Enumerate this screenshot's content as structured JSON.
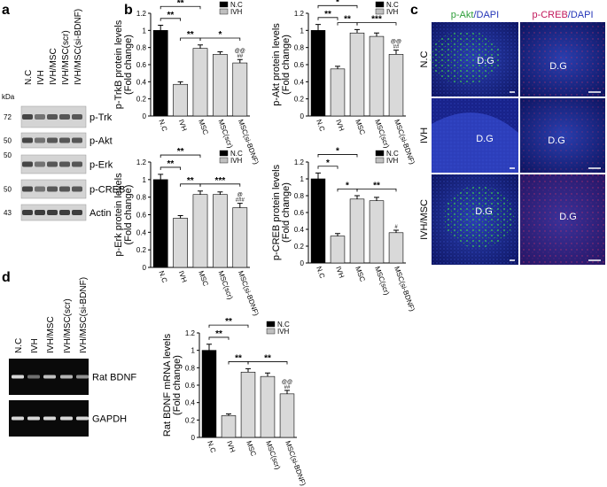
{
  "panels": [
    "a",
    "b",
    "c",
    "d"
  ],
  "blot": {
    "kda_label": "kDa",
    "lanes": [
      "N.C",
      "IVH",
      "IVH/MSC",
      "IVH/MSC(scr)",
      "IVH/MSC(si-BDNF)"
    ],
    "rows": [
      {
        "label": "p-Trk",
        "kda": "72"
      },
      {
        "label": "p-Akt",
        "kda": "50"
      },
      {
        "label": "p-Erk",
        "kda": "50"
      },
      {
        "label": "p-CREB",
        "kda": "50"
      },
      {
        "label": "Actin",
        "kda": "43"
      }
    ]
  },
  "images": {
    "columns": [
      {
        "marker": "p-Akt",
        "stain": "/DAPI"
      },
      {
        "marker": "p-CREB",
        "stain": "/DAPI"
      }
    ],
    "rows": [
      "N.C",
      "IVH",
      "IVH/MSC"
    ],
    "region": "D.G"
  },
  "gel": {
    "lanes": [
      "N.C",
      "IVH",
      "IVH/MSC",
      "IVH/MSC(scr)",
      "IVH/MSC(si-BDNF)"
    ],
    "rows": [
      "Rat BDNF",
      "GAPDH"
    ]
  },
  "chart_data": [
    {
      "type": "bar",
      "ylabel": [
        "p-TrkB protein levels",
        "(Fold change)"
      ],
      "categories": [
        "N.C",
        "IVH",
        "MSC",
        "MSC(scr)",
        "MSC(si-BDNF)"
      ],
      "values": [
        1.0,
        0.37,
        0.79,
        0.72,
        0.62
      ],
      "errors": [
        0.06,
        0.03,
        0.04,
        0.03,
        0.04
      ],
      "colors": [
        "#000000",
        "#d9d9d9",
        "#d9d9d9",
        "#d9d9d9",
        "#d9d9d9"
      ],
      "legend": [
        {
          "name": "N.C",
          "color": "#000000"
        },
        {
          "name": "IVH",
          "color": "#bfbfbf"
        }
      ],
      "ylim": [
        0,
        1.2
      ],
      "yticks": [
        0,
        0.2,
        0.4,
        0.6,
        0.8,
        1,
        1.2
      ],
      "brackets": [
        "**",
        "**",
        "**",
        "*"
      ],
      "marks": [
        "##",
        "@@"
      ]
    },
    {
      "type": "bar",
      "ylabel": [
        "p-Akt protein levels",
        "(Fold change)"
      ],
      "categories": [
        "N.C",
        "IVH",
        "MSC",
        "MSC(scr)",
        "MSC(si-BDNF)"
      ],
      "values": [
        1.0,
        0.55,
        0.97,
        0.93,
        0.72
      ],
      "errors": [
        0.07,
        0.03,
        0.04,
        0.04,
        0.05
      ],
      "colors": [
        "#000000",
        "#d9d9d9",
        "#d9d9d9",
        "#d9d9d9",
        "#d9d9d9"
      ],
      "legend": [
        {
          "name": "N.C",
          "color": "#000000"
        },
        {
          "name": "IVH",
          "color": "#bfbfbf"
        }
      ],
      "ylim": [
        0,
        1.2
      ],
      "yticks": [
        0,
        0.2,
        0.4,
        0.6,
        0.8,
        1,
        1.2
      ],
      "brackets": [
        "*",
        "**",
        "**",
        "***"
      ],
      "marks": [
        "##",
        "@@"
      ]
    },
    {
      "type": "bar",
      "ylabel": [
        "p-Erk protein levels",
        "(Fold change)"
      ],
      "categories": [
        "N.C",
        "IVH",
        "MSC",
        "MSC(scr)",
        "MSC(si-BDNF)"
      ],
      "values": [
        1.0,
        0.56,
        0.83,
        0.83,
        0.68
      ],
      "errors": [
        0.06,
        0.03,
        0.04,
        0.03,
        0.05
      ],
      "colors": [
        "#000000",
        "#d9d9d9",
        "#d9d9d9",
        "#d9d9d9",
        "#d9d9d9"
      ],
      "legend": [
        {
          "name": "N.C",
          "color": "#000000"
        },
        {
          "name": "IVH",
          "color": "#bfbfbf"
        }
      ],
      "ylim": [
        0,
        1.2
      ],
      "yticks": [
        0,
        0.2,
        0.4,
        0.6,
        0.8,
        1,
        1.2
      ],
      "brackets": [
        "**",
        "**",
        "**",
        "***"
      ],
      "marks": [
        "###",
        "@"
      ]
    },
    {
      "type": "bar",
      "ylabel": [
        "p-CREB protein levels",
        "(Fold change)"
      ],
      "categories": [
        "N.C",
        "IVH",
        "MSC",
        "MSC(scr)",
        "MSC(si-BDNF)"
      ],
      "values": [
        1.0,
        0.32,
        0.76,
        0.74,
        0.36
      ],
      "errors": [
        0.07,
        0.03,
        0.04,
        0.04,
        0.03
      ],
      "colors": [
        "#000000",
        "#d9d9d9",
        "#d9d9d9",
        "#d9d9d9",
        "#d9d9d9"
      ],
      "legend": [
        {
          "name": "N.C",
          "color": "#000000"
        },
        {
          "name": "IVH",
          "color": "#bfbfbf"
        }
      ],
      "ylim": [
        0,
        1.2
      ],
      "yticks": [
        0,
        0.2,
        0.4,
        0.6,
        0.8,
        1,
        1.2
      ],
      "brackets": [
        "*",
        "*",
        "*",
        "**"
      ],
      "marks": [
        "#"
      ]
    },
    {
      "type": "bar",
      "ylabel": [
        "Rat BDNF mRNA levels",
        "(Fold change)"
      ],
      "categories": [
        "N.C",
        "IVH",
        "MSC",
        "MSC(scr)",
        "MSC(si-BDNF)"
      ],
      "values": [
        1.0,
        0.25,
        0.75,
        0.7,
        0.5
      ],
      "errors": [
        0.07,
        0.02,
        0.04,
        0.04,
        0.04
      ],
      "colors": [
        "#000000",
        "#d9d9d9",
        "#d9d9d9",
        "#d9d9d9",
        "#d9d9d9"
      ],
      "legend": [
        {
          "name": "N.C",
          "color": "#000000"
        },
        {
          "name": "IVH",
          "color": "#bfbfbf"
        }
      ],
      "ylim": [
        0,
        1.2
      ],
      "yticks": [
        0,
        0.2,
        0.4,
        0.6,
        0.8,
        1,
        1.2
      ],
      "brackets": [
        "**",
        "**",
        "**",
        "**"
      ],
      "marks": [
        "##",
        "@@"
      ]
    }
  ]
}
